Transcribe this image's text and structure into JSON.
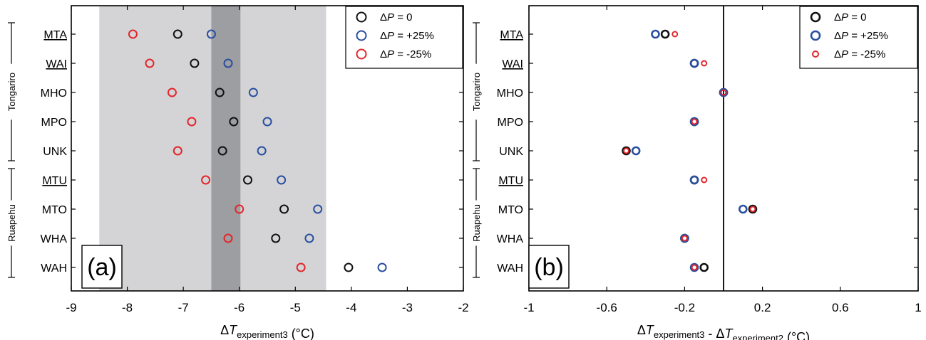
{
  "chart_data": [
    {
      "type": "scatter",
      "panel_label": "(a)",
      "categories": [
        "MTA",
        "WAI",
        "MHO",
        "MPO",
        "UNK",
        "MTU",
        "MTO",
        "WHA",
        "WAH"
      ],
      "underlined_categories": [
        "MTA",
        "WAI",
        "MTU"
      ],
      "groups": [
        {
          "name": "Tongariro",
          "categories": [
            "MTA",
            "WAI",
            "MHO",
            "MPO",
            "UNK"
          ]
        },
        {
          "name": "Ruapehu",
          "categories": [
            "MTU",
            "MTO",
            "WHA",
            "WAH"
          ]
        }
      ],
      "series": [
        {
          "name": "ΔP = 0",
          "color": "#111111",
          "values": [
            -7.1,
            -6.8,
            -6.35,
            -6.1,
            -6.3,
            -5.85,
            -5.2,
            -5.35,
            -4.05
          ]
        },
        {
          "name": "ΔP = +25%",
          "color": "#2a4fa0",
          "values": [
            -6.5,
            -6.2,
            -5.75,
            -5.5,
            -5.6,
            -5.25,
            -4.6,
            -4.75,
            -3.45
          ]
        },
        {
          "name": "ΔP = -25%",
          "color": "#e3262b",
          "values": [
            -7.9,
            -7.6,
            -7.2,
            -6.85,
            -7.1,
            -6.6,
            -6.0,
            -6.2,
            -4.9
          ]
        }
      ],
      "shaded_ranges": [
        {
          "range": [
            -8.5,
            -4.45
          ],
          "color": "#d4d4d6"
        },
        {
          "range": [
            -6.5,
            -5.98
          ],
          "color": "#9d9ea1"
        }
      ],
      "xlim": [
        -9,
        -2
      ],
      "xticks": [
        "-9",
        "-8",
        "-7",
        "-6",
        "-5",
        "-4",
        "-3",
        "-2"
      ],
      "xlabel": {
        "main": "ΔT",
        "sub": "experiment3",
        "unit": "(°C)"
      },
      "legend_position": "top-right"
    },
    {
      "type": "scatter",
      "panel_label": "(b)",
      "categories": [
        "MTA",
        "WAI",
        "MHO",
        "MPO",
        "UNK",
        "MTU",
        "MTO",
        "WHA",
        "WAH"
      ],
      "underlined_categories": [
        "MTA",
        "WAI",
        "MTU"
      ],
      "groups": [
        {
          "name": "Tongariro",
          "categories": [
            "MTA",
            "WAI",
            "MHO",
            "MPO",
            "UNK"
          ]
        },
        {
          "name": "Ruapehu",
          "categories": [
            "MTU",
            "MTO",
            "WHA",
            "WAH"
          ]
        }
      ],
      "series": [
        {
          "name": "ΔP = 0",
          "color": "#111111",
          "values": [
            -0.3,
            -0.15,
            0.0,
            -0.15,
            -0.5,
            -0.15,
            0.15,
            -0.2,
            -0.1
          ]
        },
        {
          "name": "ΔP = +25%",
          "color": "#2a4fa0",
          "values": [
            -0.35,
            -0.15,
            0.0,
            -0.15,
            -0.45,
            -0.15,
            0.1,
            -0.2,
            -0.15
          ]
        },
        {
          "name": "ΔP = -25%",
          "color": "#e3262b",
          "values": [
            -0.25,
            -0.1,
            0.0,
            -0.15,
            -0.5,
            -0.1,
            0.15,
            -0.2,
            -0.15
          ]
        }
      ],
      "reference_line": 0,
      "xlim": [
        -1,
        1
      ],
      "xticks": [
        "-1",
        "-0.6",
        "-0.2",
        "0.2",
        "0.6",
        "1"
      ],
      "xlabel": {
        "main1": "ΔT",
        "sub1": "experiment3",
        "sep": " - ",
        "main2": "ΔT",
        "sub2": "experiment2",
        "unit": "(°C)"
      },
      "legend_position": "top-right"
    }
  ]
}
